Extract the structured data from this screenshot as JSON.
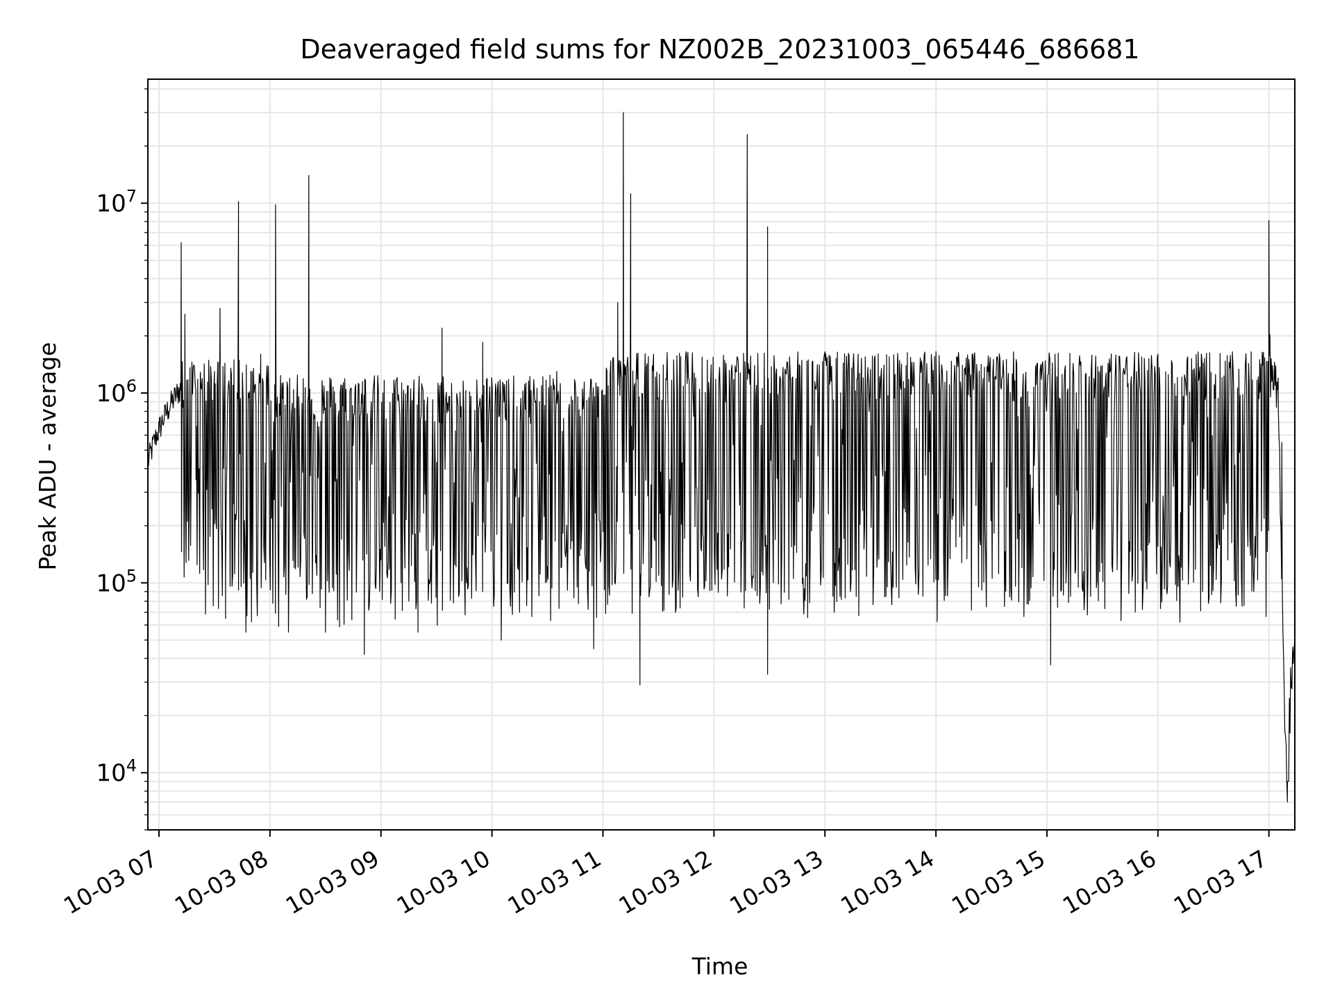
{
  "chart_data": {
    "type": "line",
    "title": "Deaveraged field sums for NZ002B_20231003_065446_686681",
    "xlabel": "Time",
    "ylabel": "Peak ADU - average",
    "y_scale": "log",
    "ylim": [
      5000,
      45000000
    ],
    "xlim": [
      "2023-10-03 06:54",
      "2023-10-03 17:14"
    ],
    "x_ticks": [
      {
        "t": "2023-10-03 07:00",
        "label": "10-03 07"
      },
      {
        "t": "2023-10-03 08:00",
        "label": "10-03 08"
      },
      {
        "t": "2023-10-03 09:00",
        "label": "10-03 09"
      },
      {
        "t": "2023-10-03 10:00",
        "label": "10-03 10"
      },
      {
        "t": "2023-10-03 11:00",
        "label": "10-03 11"
      },
      {
        "t": "2023-10-03 12:00",
        "label": "10-03 12"
      },
      {
        "t": "2023-10-03 13:00",
        "label": "10-03 13"
      },
      {
        "t": "2023-10-03 14:00",
        "label": "10-03 14"
      },
      {
        "t": "2023-10-03 15:00",
        "label": "10-03 15"
      },
      {
        "t": "2023-10-03 16:00",
        "label": "10-03 16"
      },
      {
        "t": "2023-10-03 17:00",
        "label": "10-03 17"
      }
    ],
    "y_ticks": [
      {
        "value": 10000,
        "base": "10",
        "exp": "4"
      },
      {
        "value": 100000,
        "base": "10",
        "exp": "5"
      },
      {
        "value": 1000000,
        "base": "10",
        "exp": "6"
      },
      {
        "value": 10000000,
        "base": "10",
        "exp": "7"
      }
    ],
    "grid": true,
    "line_color": "#000000",
    "grid_color": "#e6e6e6",
    "series": [
      {
        "values": [
          [
            "2023-10-03 06:54",
            450000
          ],
          [
            "2023-10-03 07:00",
            620000
          ],
          [
            "2023-10-03 07:05",
            800000
          ],
          [
            "2023-10-03 07:10",
            950000
          ],
          [
            "2023-10-03 07:12",
            6200000
          ],
          [
            "2023-10-03 07:14",
            2600000
          ],
          [
            "2023-10-03 07:20",
            350000
          ],
          [
            "2023-10-03 07:30",
            1300000
          ],
          [
            "2023-10-03 07:33",
            2800000
          ],
          [
            "2023-10-03 07:36",
            65000
          ],
          [
            "2023-10-03 07:40",
            1100000
          ],
          [
            "2023-10-03 07:43",
            10200000
          ],
          [
            "2023-10-03 07:47",
            55000
          ],
          [
            "2023-10-03 07:55",
            1600000
          ],
          [
            "2023-10-03 08:03",
            9800000
          ],
          [
            "2023-10-03 08:10",
            55000
          ],
          [
            "2023-10-03 08:21",
            14000000
          ],
          [
            "2023-10-03 08:30",
            55000
          ],
          [
            "2023-10-03 08:50",
            1150000
          ],
          [
            "2023-10-03 08:51",
            42000
          ],
          [
            "2023-10-03 09:20",
            55000
          ],
          [
            "2023-10-03 09:33",
            2200000
          ],
          [
            "2023-10-03 09:55",
            1850000
          ],
          [
            "2023-10-03 10:05",
            50000
          ],
          [
            "2023-10-03 10:35",
            1300000
          ],
          [
            "2023-10-03 10:55",
            45000
          ],
          [
            "2023-10-03 11:08",
            3000000
          ],
          [
            "2023-10-03 11:11",
            30000000
          ],
          [
            "2023-10-03 11:15",
            11200000
          ],
          [
            "2023-10-03 11:20",
            29000
          ],
          [
            "2023-10-03 11:45",
            1650000
          ],
          [
            "2023-10-03 12:18",
            23000000
          ],
          [
            "2023-10-03 12:29",
            7500000
          ],
          [
            "2023-10-03 12:29",
            33000
          ],
          [
            "2023-10-03 13:00",
            1650000
          ],
          [
            "2023-10-03 14:00",
            1650000
          ],
          [
            "2023-10-03 15:02",
            37000
          ],
          [
            "2023-10-03 16:00",
            1600000
          ],
          [
            "2023-10-03 16:55",
            1500000
          ],
          [
            "2023-10-03 17:00",
            8100000
          ],
          [
            "2023-10-03 17:05",
            1200000
          ],
          [
            "2023-10-03 17:07",
            550000
          ],
          [
            "2023-10-03 17:10",
            7000
          ],
          [
            "2023-10-03 17:14",
            55000
          ]
        ]
      }
    ]
  }
}
